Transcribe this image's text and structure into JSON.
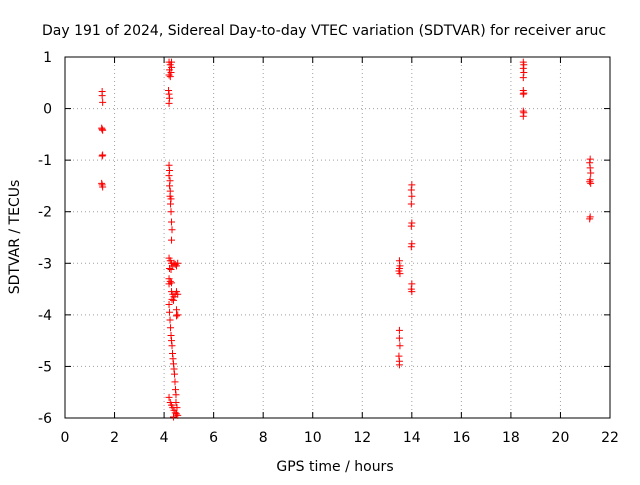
{
  "chart_data": {
    "type": "scatter",
    "title": "Day 191 of 2024, Sidereal Day-to-day VTEC variation (SDTVAR) for receiver aruc",
    "xlabel": "GPS time / hours",
    "ylabel": "SDTVAR / TECUs",
    "xlim": [
      0,
      22
    ],
    "ylim": [
      -6,
      1
    ],
    "xticks": [
      0,
      2,
      4,
      6,
      8,
      10,
      12,
      14,
      16,
      18,
      20,
      22
    ],
    "yticks": [
      -6,
      -5,
      -4,
      -3,
      -2,
      -1,
      0,
      1
    ],
    "grid": true,
    "legend": "none",
    "marker": "plus",
    "series": [
      {
        "name": "SDTVAR",
        "color": "#ff0000",
        "points": [
          [
            1.5,
            0.33
          ],
          [
            1.5,
            0.25
          ],
          [
            1.52,
            0.12
          ],
          [
            1.48,
            -0.38
          ],
          [
            1.5,
            -0.4
          ],
          [
            1.52,
            -0.42
          ],
          [
            1.5,
            -0.92
          ],
          [
            1.52,
            -0.9
          ],
          [
            1.48,
            -1.45
          ],
          [
            1.5,
            -1.48
          ],
          [
            1.52,
            -1.52
          ],
          [
            4.2,
            0.9
          ],
          [
            4.25,
            0.85
          ],
          [
            4.3,
            0.8
          ],
          [
            4.22,
            0.75
          ],
          [
            4.28,
            0.7
          ],
          [
            4.2,
            0.65
          ],
          [
            4.3,
            0.9
          ],
          [
            4.25,
            0.62
          ],
          [
            4.18,
            0.35
          ],
          [
            4.2,
            0.28
          ],
          [
            4.22,
            0.2
          ],
          [
            4.2,
            0.1
          ],
          [
            4.2,
            -1.1
          ],
          [
            4.22,
            -1.2
          ],
          [
            4.2,
            -1.3
          ],
          [
            4.24,
            -1.4
          ],
          [
            4.22,
            -1.5
          ],
          [
            4.25,
            -1.6
          ],
          [
            4.24,
            -1.7
          ],
          [
            4.28,
            -1.75
          ],
          [
            4.26,
            -1.85
          ],
          [
            4.28,
            -2.0
          ],
          [
            4.3,
            -2.2
          ],
          [
            4.32,
            -2.35
          ],
          [
            4.3,
            -2.55
          ],
          [
            4.2,
            -2.9
          ],
          [
            4.25,
            -2.95
          ],
          [
            4.3,
            -3.0
          ],
          [
            4.35,
            -3.05
          ],
          [
            4.4,
            -3.0
          ],
          [
            4.45,
            -3.02
          ],
          [
            4.5,
            -3.05
          ],
          [
            4.55,
            -3.0
          ],
          [
            4.22,
            -3.1
          ],
          [
            4.28,
            -3.12
          ],
          [
            4.2,
            -3.3
          ],
          [
            4.25,
            -3.35
          ],
          [
            4.3,
            -3.38
          ],
          [
            4.2,
            -3.4
          ],
          [
            4.3,
            -3.55
          ],
          [
            4.35,
            -3.6
          ],
          [
            4.4,
            -3.65
          ],
          [
            4.45,
            -3.6
          ],
          [
            4.5,
            -3.55
          ],
          [
            4.55,
            -3.6
          ],
          [
            4.32,
            -3.7
          ],
          [
            4.38,
            -3.72
          ],
          [
            4.2,
            -3.8
          ],
          [
            4.22,
            -3.95
          ],
          [
            4.24,
            -4.1
          ],
          [
            4.26,
            -4.25
          ],
          [
            4.28,
            -4.4
          ],
          [
            4.3,
            -4.5
          ],
          [
            4.32,
            -4.6
          ],
          [
            4.34,
            -4.75
          ],
          [
            4.36,
            -4.85
          ],
          [
            4.38,
            -4.95
          ],
          [
            4.4,
            -5.05
          ],
          [
            4.42,
            -5.15
          ],
          [
            4.44,
            -5.3
          ],
          [
            4.46,
            -5.45
          ],
          [
            4.48,
            -5.55
          ],
          [
            4.5,
            -3.9
          ],
          [
            4.55,
            -4.0
          ],
          [
            4.5,
            -4.02
          ],
          [
            4.2,
            -5.6
          ],
          [
            4.25,
            -5.7
          ],
          [
            4.3,
            -5.75
          ],
          [
            4.35,
            -5.8
          ],
          [
            4.4,
            -5.85
          ],
          [
            4.45,
            -5.9
          ],
          [
            4.5,
            -5.92
          ],
          [
            4.55,
            -5.95
          ],
          [
            4.38,
            -5.98
          ],
          [
            4.48,
            -5.7
          ],
          [
            4.52,
            -5.8
          ],
          [
            13.5,
            -2.95
          ],
          [
            13.52,
            -3.05
          ],
          [
            13.5,
            -3.1
          ],
          [
            13.48,
            -3.15
          ],
          [
            13.52,
            -3.2
          ],
          [
            13.5,
            -4.3
          ],
          [
            13.5,
            -4.45
          ],
          [
            13.52,
            -4.6
          ],
          [
            13.48,
            -4.8
          ],
          [
            13.5,
            -4.9
          ],
          [
            13.5,
            -4.97
          ],
          [
            14.0,
            -1.48
          ],
          [
            13.98,
            -1.58
          ],
          [
            14.0,
            -1.7
          ],
          [
            13.98,
            -1.85
          ],
          [
            14.0,
            -2.22
          ],
          [
            13.98,
            -2.28
          ],
          [
            14.0,
            -2.62
          ],
          [
            13.98,
            -2.68
          ],
          [
            14.0,
            -3.4
          ],
          [
            13.98,
            -3.5
          ],
          [
            14.0,
            -3.55
          ],
          [
            18.5,
            0.9
          ],
          [
            18.52,
            0.85
          ],
          [
            18.5,
            0.78
          ],
          [
            18.52,
            0.7
          ],
          [
            18.5,
            0.6
          ],
          [
            18.5,
            0.35
          ],
          [
            18.52,
            0.3
          ],
          [
            18.5,
            0.28
          ],
          [
            18.5,
            -0.05
          ],
          [
            18.52,
            -0.08
          ],
          [
            18.5,
            -0.15
          ],
          [
            21.2,
            -0.98
          ],
          [
            21.18,
            -1.05
          ],
          [
            21.2,
            -1.15
          ],
          [
            21.22,
            -1.25
          ],
          [
            21.2,
            -1.38
          ],
          [
            21.18,
            -1.42
          ],
          [
            21.22,
            -1.45
          ],
          [
            21.2,
            -2.1
          ],
          [
            21.18,
            -2.14
          ]
        ]
      }
    ]
  }
}
